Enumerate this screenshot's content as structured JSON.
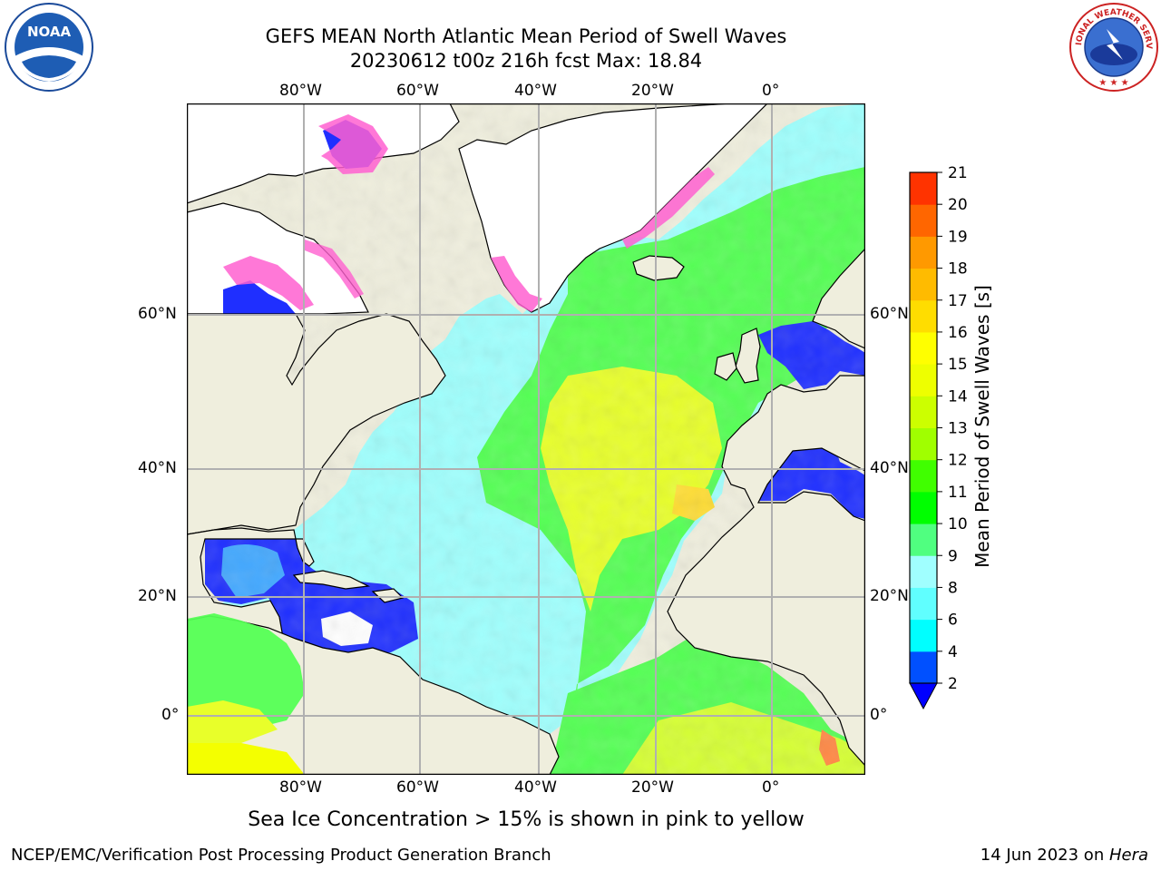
{
  "header": {
    "title_line1": "GEFS MEAN North Atlantic Mean Period of Swell Waves",
    "title_line2": "20230612 t00z 216h fcst   Max: 18.84"
  },
  "logos": {
    "left": {
      "name": "noaa-logo",
      "text": "NOAA"
    },
    "right": {
      "name": "national-weather-service-logo",
      "text": "NATIONAL WEATHER SERVICE"
    }
  },
  "map": {
    "lon_ticks_top": [
      "80°W",
      "60°W",
      "40°W",
      "20°W",
      "0°"
    ],
    "lon_ticks_bottom": [
      "80°W",
      "60°W",
      "40°W",
      "20°W",
      "0°"
    ],
    "lat_ticks_left": [
      "60°N",
      "40°N",
      "20°N",
      "0°"
    ],
    "lat_ticks_right": [
      "60°N",
      "40°N",
      "20°N",
      "0°"
    ],
    "colors": {
      "land": "#efeedd",
      "ocean_low": "#9ffffd",
      "ocean_mid": "#54ff54",
      "ocean_high": "#ffff00",
      "ice": "#ff60d0"
    }
  },
  "colorbar": {
    "label": "Mean Period of Swell Waves [s]",
    "ticks": [
      "2",
      "4",
      "6",
      "8",
      "9",
      "10",
      "11",
      "12",
      "13",
      "14",
      "15",
      "16",
      "17",
      "18",
      "19",
      "20",
      "21"
    ],
    "colors": [
      "#0050ff",
      "#00ffff",
      "#60ffff",
      "#a0ffff",
      "#50ff80",
      "#00ff00",
      "#40ff00",
      "#a0ff00",
      "#ccff00",
      "#eeff00",
      "#ffff00",
      "#ffdd00",
      "#ffbb00",
      "#ff9900",
      "#ff6600",
      "#ff3300"
    ],
    "under_color": "#0000ff"
  },
  "caption": "Sea Ice Concentration > 15% is shown in pink to yellow",
  "footer": {
    "left": "NCEP/EMC/Verification Post Processing Product Generation Branch",
    "right_prefix": "14 Jun 2023 on ",
    "right_host": "Hera"
  }
}
